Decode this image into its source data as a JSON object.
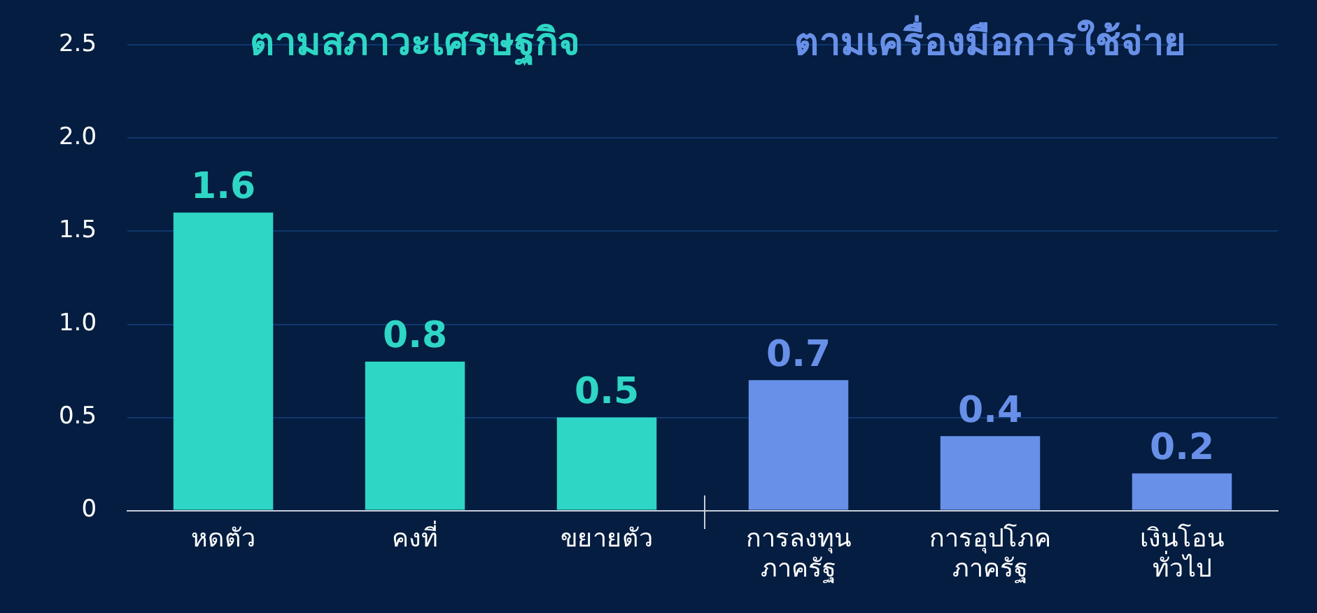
{
  "chart_data": {
    "type": "bar",
    "categories": [
      "หดตัว",
      "คงที่",
      "ขยายตัว",
      "การลงทุน ภาครัฐ",
      "การอุปโภค ภาครัฐ",
      "เงินโอน ทั่วไป"
    ],
    "values": [
      1.6,
      0.8,
      0.5,
      0.7,
      0.4,
      0.2
    ],
    "colors": [
      "#2ed6c5",
      "#2ed6c5",
      "#2ed6c5",
      "#6890e8",
      "#6890e8",
      "#6890e8"
    ],
    "ylim": [
      0,
      2.5
    ],
    "yticks": [
      {
        "value": 0,
        "label": "0"
      },
      {
        "value": 0.5,
        "label": "0.5"
      },
      {
        "value": 1,
        "label": "1.0"
      },
      {
        "value": 1.5,
        "label": "1.5"
      },
      {
        "value": 2,
        "label": "2.0"
      },
      {
        "value": 2.5,
        "label": "2.5"
      }
    ],
    "grid": "y",
    "data_labels": true,
    "legend": false,
    "annotations": [
      "ตามสภาวะเศรษฐกิจ",
      "ตามเครื่องมือการใช้จ่าย"
    ]
  }
}
